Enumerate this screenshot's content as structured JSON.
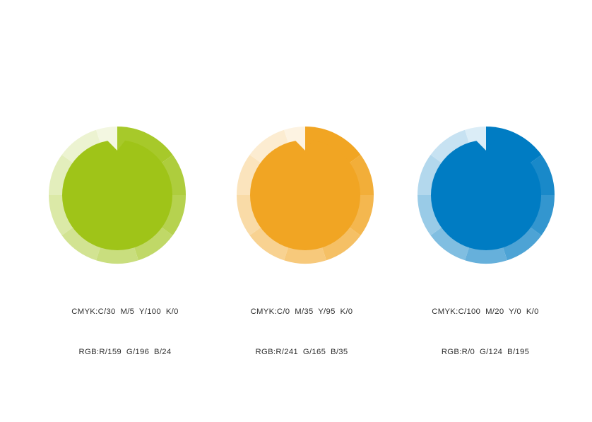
{
  "palette": {
    "swatches": [
      {
        "id": "green",
        "base_rgb": [
          159,
          196,
          24
        ],
        "base_hex": "#9fc418",
        "cmyk_label": "CMYK:C/30  M/5  Y/100  K/0",
        "rgb_label": "RGB:R/159  G/196  B/24",
        "ring_opacities": [
          0.92,
          0.84,
          0.76,
          0.66,
          0.56,
          0.47,
          0.38,
          0.29,
          0.2,
          0.13
        ]
      },
      {
        "id": "orange",
        "base_rgb": [
          241,
          165,
          35
        ],
        "base_hex": "#f1a523",
        "cmyk_label": "CMYK:C/0  M/35  Y/95  K/0",
        "rgb_label": "RGB:R/241  G/165  B/35",
        "ring_opacities": [
          1.0,
          0.9,
          0.8,
          0.7,
          0.6,
          0.5,
          0.4,
          0.3,
          0.21,
          0.13
        ]
      },
      {
        "id": "blue",
        "base_rgb": [
          0,
          124,
          195
        ],
        "base_hex": "#007cc3",
        "cmyk_label": "CMYK:C/100  M/20  Y/0  K/0",
        "rgb_label": "RGB:R/0  G/124  B/195",
        "ring_opacities": [
          1.0,
          0.9,
          0.8,
          0.7,
          0.6,
          0.5,
          0.4,
          0.3,
          0.22,
          0.14
        ]
      }
    ],
    "ring_geometry": {
      "segment_boundaries_deg": [
        0,
        54,
        90,
        126,
        162,
        198,
        234,
        270,
        306,
        342,
        360
      ],
      "outer_radius": 97,
      "disc_radius": 78,
      "notch_tip_radius": 63
    },
    "label_text_color": "#2e2e2e",
    "background": "#ffffff"
  }
}
